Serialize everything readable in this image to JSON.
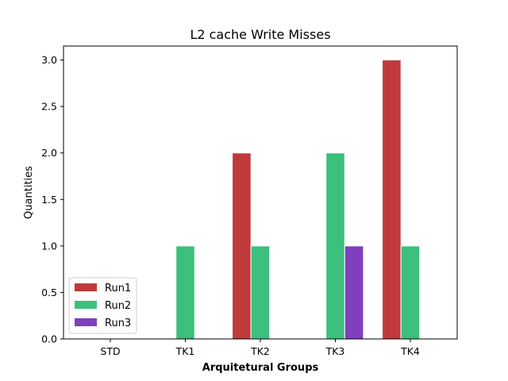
{
  "chart_data": {
    "type": "bar",
    "title": "L2 cache Write Misses",
    "xlabel": "Arquitetural Groups",
    "ylabel": "Quantities",
    "categories": [
      "STD",
      "TK1",
      "TK2",
      "TK3",
      "TK4"
    ],
    "series": [
      {
        "name": "Run1",
        "color": "#c0393b",
        "values": [
          0,
          0,
          2,
          0,
          3
        ]
      },
      {
        "name": "Run2",
        "color": "#3dbf7d",
        "values": [
          0,
          1,
          1,
          2,
          1
        ]
      },
      {
        "name": "Run3",
        "color": "#7f3fbf",
        "values": [
          0,
          0,
          0,
          1,
          0
        ]
      }
    ],
    "ylim": [
      0,
      3.15
    ],
    "yticks": [
      "0.0",
      "0.5",
      "1.0",
      "1.5",
      "2.0",
      "2.5",
      "3.0"
    ],
    "grid": false,
    "legend_position": "lower-left"
  }
}
